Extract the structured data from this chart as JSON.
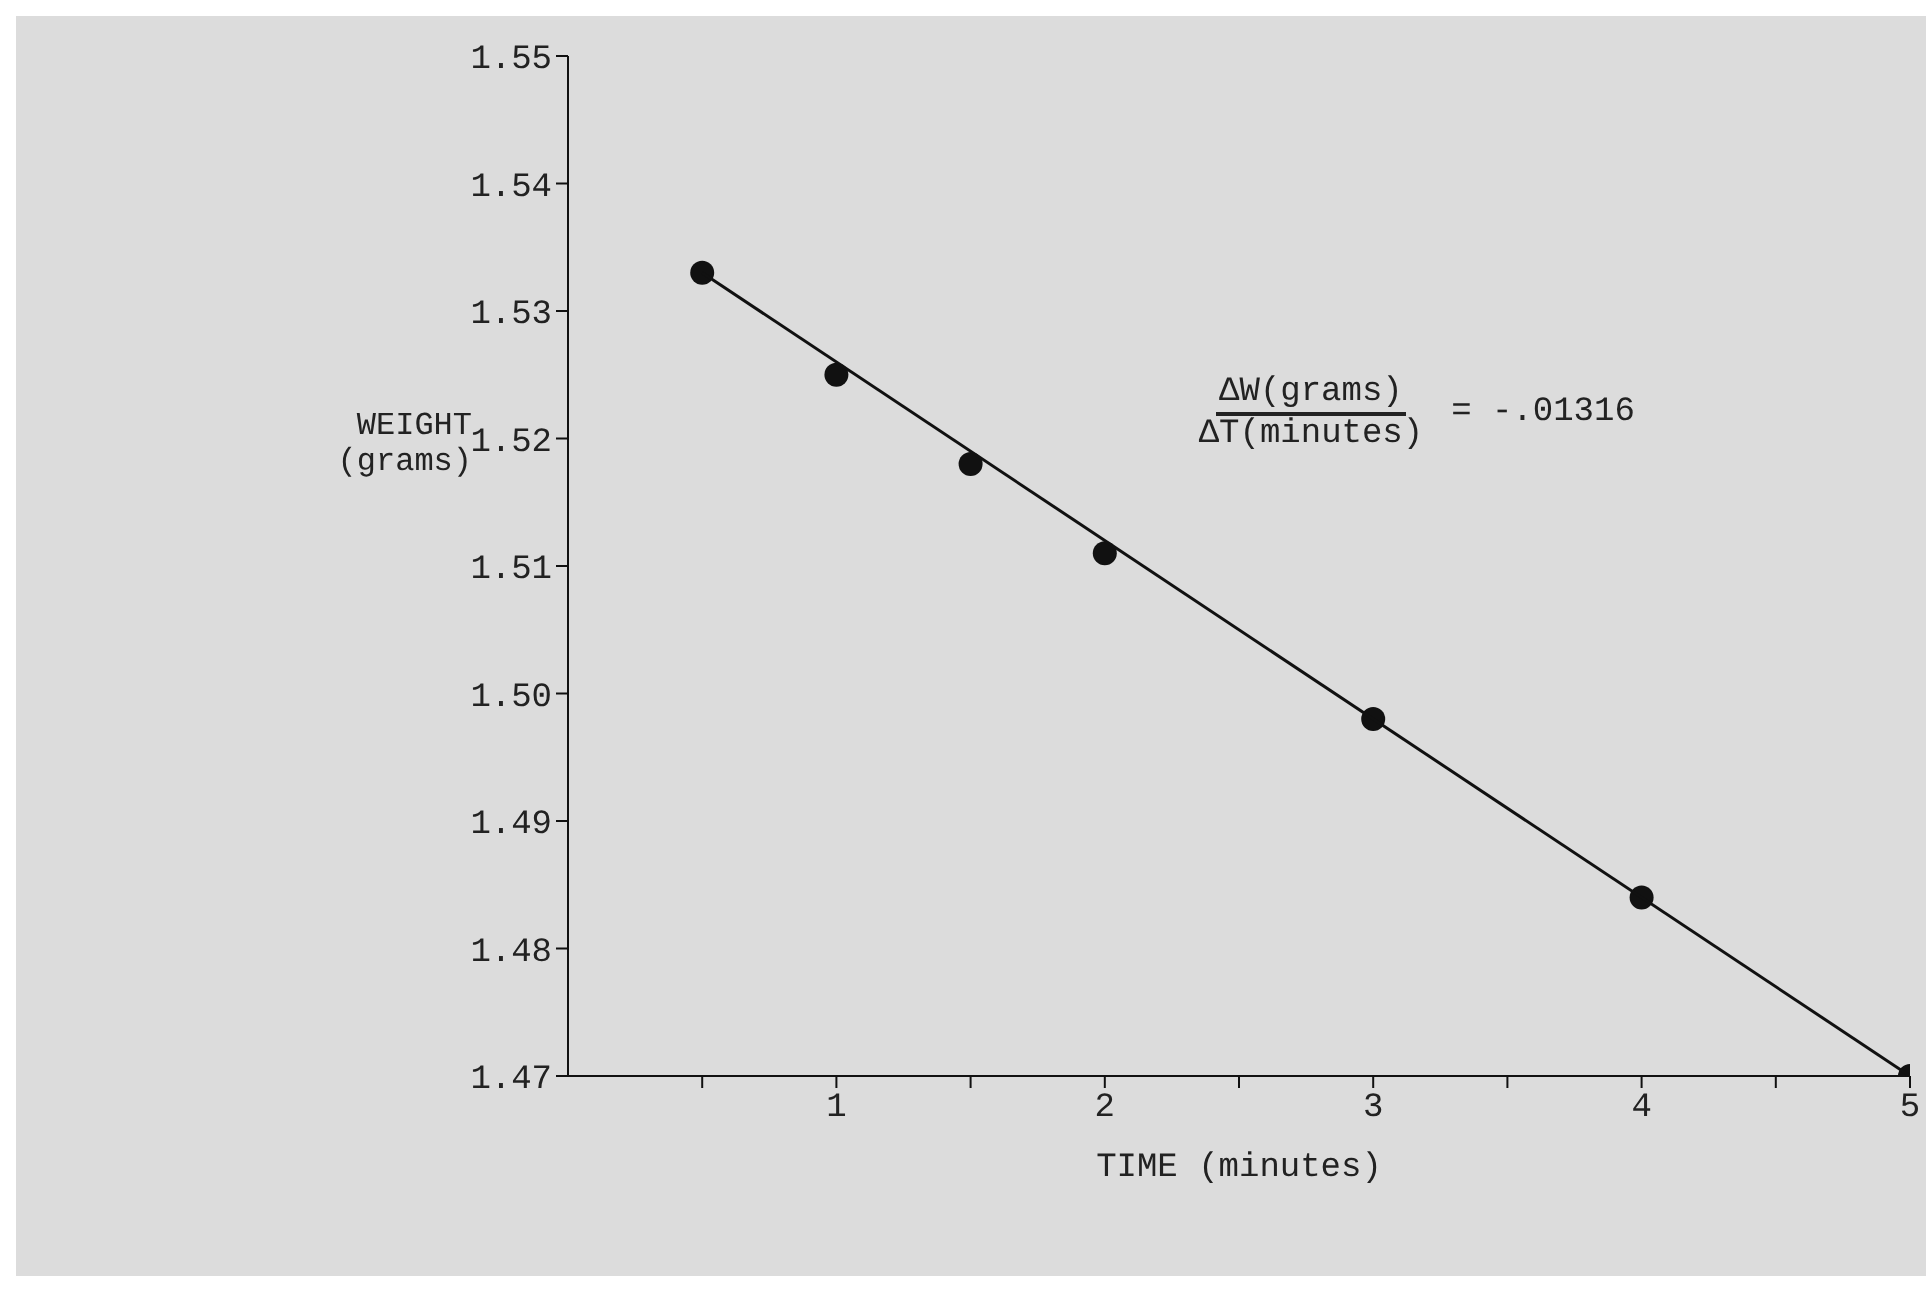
{
  "chart_data": {
    "type": "scatter",
    "xlabel": "TIME (minutes)",
    "ylabel": "WEIGHT\n(grams)",
    "annotations": [
      "ΔW(grams)",
      "ΔT(minutes)",
      "= -.01316"
    ],
    "x": [
      0.5,
      1,
      1.5,
      2,
      3,
      4,
      5
    ],
    "series": [
      {
        "color": "#111111",
        "values": [
          1.533,
          1.525,
          1.518,
          1.511,
          1.498,
          1.484,
          1.47
        ]
      },
      {
        "type": "line",
        "marker": "none",
        "color": "#111111",
        "x": [
          0.5,
          5
        ],
        "values": [
          1.533,
          1.47
        ]
      }
    ],
    "marker": "circle",
    "grid": false,
    "legend": false,
    "xlim": [
      0,
      5
    ],
    "xticks": [
      {
        "value": 0.5,
        "label": null
      },
      1,
      {
        "value": 1.5,
        "label": null
      },
      2,
      {
        "value": 2.5,
        "label": null
      },
      3,
      {
        "value": 3.5,
        "label": null
      },
      4,
      {
        "value": 4.5,
        "label": null
      },
      5
    ],
    "ylim": [
      1.47,
      1.55
    ],
    "yticks": [
      1.47,
      1.48,
      1.49,
      {
        "value": 1.5,
        "label": "1.50"
      },
      1.51,
      1.52,
      1.53,
      1.54,
      1.55
    ]
  }
}
